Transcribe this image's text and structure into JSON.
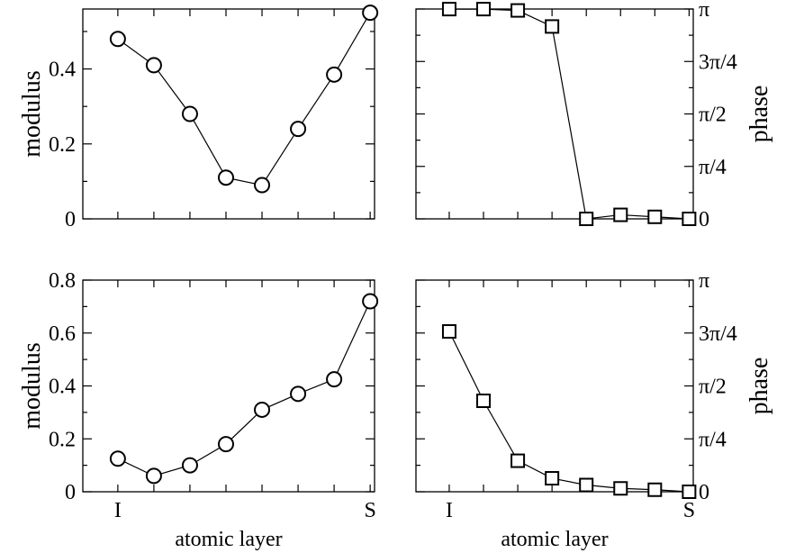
{
  "chart_data": [
    {
      "type": "line",
      "panel": "top-left",
      "ylabel": "modulus",
      "xlabel": "",
      "ylim": [
        0,
        0.56
      ],
      "yticks": [
        0,
        0.2,
        0.4
      ],
      "ytick_labels": [
        "0",
        "0.2",
        "0.4"
      ],
      "x_tick_labels": [],
      "marker": "circle",
      "series": [
        {
          "values": [
            0.48,
            0.41,
            0.28,
            0.11,
            0.09,
            0.24,
            0.385,
            0.55
          ]
        }
      ]
    },
    {
      "type": "line",
      "panel": "top-right",
      "ylabel": "phase",
      "xlabel": "",
      "ylim": [
        0,
        3.1416
      ],
      "yticks": [
        0,
        0.7854,
        1.5708,
        2.3562,
        3.1416
      ],
      "ytick_labels": [
        "0",
        "π/4",
        "π/2",
        "3π/4",
        "π"
      ],
      "x_tick_labels": [],
      "marker": "square",
      "series": [
        {
          "values": [
            3.14,
            3.14,
            3.12,
            2.88,
            0.0,
            0.06,
            0.03,
            0.0
          ]
        }
      ]
    },
    {
      "type": "line",
      "panel": "bottom-left",
      "ylabel": "modulus",
      "xlabel": "atomic layer",
      "ylim": [
        0,
        0.8
      ],
      "yticks": [
        0,
        0.2,
        0.4,
        0.6,
        0.8
      ],
      "ytick_labels": [
        "0",
        "0.2",
        "0.4",
        "0.6",
        "0.8"
      ],
      "x_tick_labels": [
        "I",
        "S"
      ],
      "marker": "circle",
      "series": [
        {
          "values": [
            0.125,
            0.06,
            0.1,
            0.18,
            0.31,
            0.37,
            0.425,
            0.72
          ]
        }
      ]
    },
    {
      "type": "line",
      "panel": "bottom-right",
      "ylabel": "phase",
      "xlabel": "atomic layer",
      "ylim": [
        0,
        3.1416
      ],
      "yticks": [
        0,
        0.7854,
        1.5708,
        2.3562,
        3.1416
      ],
      "ytick_labels": [
        "0",
        "π/4",
        "π/2",
        "3π/4",
        "π"
      ],
      "x_tick_labels": [
        "I",
        "S"
      ],
      "marker": "square",
      "series": [
        {
          "values": [
            2.38,
            1.35,
            0.46,
            0.2,
            0.1,
            0.05,
            0.03,
            0.0
          ]
        }
      ]
    }
  ]
}
